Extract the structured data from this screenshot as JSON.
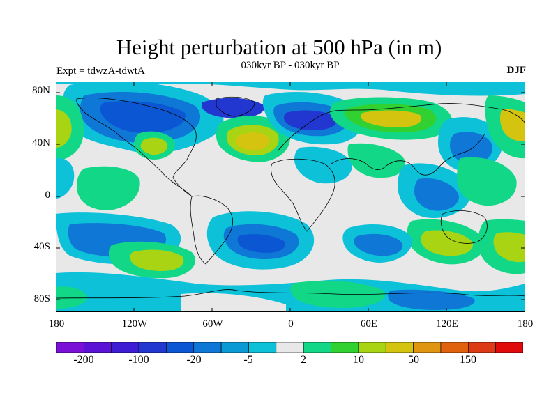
{
  "title": "Height perturbation at 500 hPa (in m)",
  "subtitle": "030kyr BP - 030kyr BP",
  "left_label": "Expt = tdwzA-tdwtA",
  "right_label": "DJF",
  "lat_ticks": [
    "80N",
    "40N",
    "0",
    "40S",
    "80S"
  ],
  "lon_ticks": [
    "180",
    "120W",
    "60W",
    "0",
    "60E",
    "120E",
    "180"
  ],
  "colorbar": {
    "colors": [
      "#7a10d6",
      "#5a12d4",
      "#3e1cd4",
      "#2236d0",
      "#0b57d3",
      "#0f78d6",
      "#0c9ad5",
      "#0cc1d8",
      "#e8e8e8",
      "#12d787",
      "#30d130",
      "#a8d414",
      "#d4c410",
      "#e09510",
      "#e0620e",
      "#dc3a16",
      "#e00a0a"
    ],
    "labels": [
      "-200",
      "-100",
      "-20",
      "-5",
      "2",
      "10",
      "50",
      "150"
    ]
  },
  "map_colors": {
    "background": "#e8e8e8",
    "neg_light": "#0cc1d8",
    "neg_mid": "#0f78d6",
    "neg_strong": "#0b57d3",
    "neg_deep": "#2236d0",
    "pos_light": "#12d787",
    "pos_mid": "#30d130",
    "pos_strong": "#a8d414",
    "pos_deep": "#d4c410",
    "coast": "#000000"
  }
}
